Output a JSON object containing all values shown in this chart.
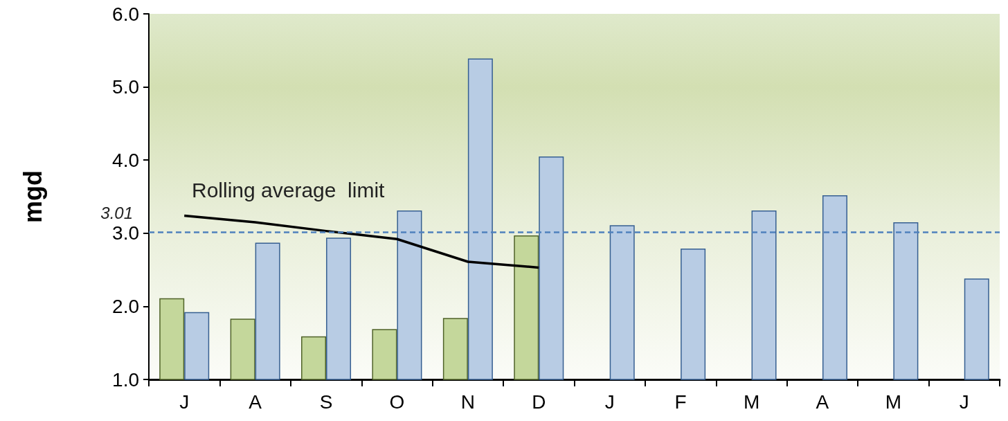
{
  "chart_data": {
    "type": "bar",
    "ylabel": "mgd",
    "categories": [
      "J",
      "A",
      "S",
      "O",
      "N",
      "D",
      "J",
      "F",
      "M",
      "A",
      "M",
      "J"
    ],
    "series": [
      {
        "color": "#c4d79b",
        "values": [
          2.11,
          1.83,
          1.59,
          1.69,
          1.84,
          2.97,
          null,
          null,
          null,
          null,
          null,
          null
        ]
      },
      {
        "color": "#b8cce4",
        "values": [
          1.92,
          2.87,
          2.94,
          3.31,
          5.39,
          4.05,
          3.11,
          2.79,
          3.31,
          3.52,
          3.15,
          2.38
        ]
      },
      {
        "type": "line",
        "name": "Rolling average  limit",
        "color": "#000000",
        "values": [
          3.24,
          3.15,
          3.03,
          2.92,
          2.61,
          2.53,
          null,
          null,
          null,
          null,
          null,
          null
        ]
      }
    ],
    "ylim": [
      1.0,
      6.0
    ],
    "yticks": [
      {
        "value": 1,
        "label": "1.0"
      },
      {
        "value": 2,
        "label": "2.0"
      },
      {
        "value": 3,
        "label": "3.0"
      },
      {
        "value": 4,
        "label": "4.0"
      },
      {
        "value": 5,
        "label": "5.0"
      },
      {
        "value": 6,
        "label": "6.0"
      }
    ],
    "ref_lines": [
      {
        "axis": "y",
        "value": 3.01,
        "label": "3.01",
        "color": "#4f81bd",
        "line_style": "dashed"
      }
    ],
    "grid": false,
    "legend": false,
    "marker": "none"
  }
}
